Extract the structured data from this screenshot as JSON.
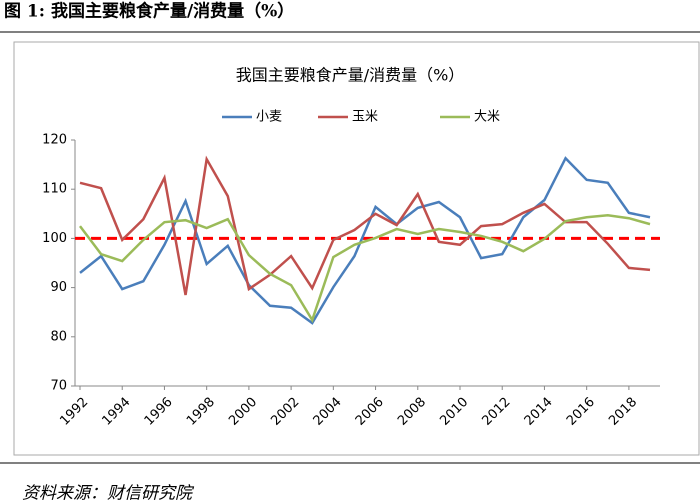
{
  "header": {
    "title": "图 1:  我国主要粮食产量/消费量（%）"
  },
  "footer": {
    "source": "资料来源：财信研究院"
  },
  "chart_data": {
    "type": "line",
    "title": "我国主要粮食产量/消费量（%）",
    "x": [
      1992,
      1993,
      1994,
      1995,
      1996,
      1997,
      1998,
      1999,
      2000,
      2001,
      2002,
      2003,
      2004,
      2005,
      2006,
      2007,
      2008,
      2009,
      2010,
      2011,
      2012,
      2013,
      2014,
      2015,
      2016,
      2017,
      2018,
      2019
    ],
    "xlim": [
      1992,
      2019
    ],
    "xticks": [
      1992,
      1994,
      1996,
      1998,
      2000,
      2002,
      2004,
      2006,
      2008,
      2010,
      2012,
      2014,
      2016,
      2018
    ],
    "ylim": [
      70,
      120
    ],
    "yticks": [
      70,
      80,
      90,
      100,
      110,
      120
    ],
    "grid": false,
    "legend": "top",
    "reference_line": {
      "value": 100,
      "color": "#ff0000",
      "style": "dashed"
    },
    "series": [
      {
        "name": "小麦",
        "color": "#4a7ebb",
        "values": [
          93,
          96.4,
          89.7,
          91.3,
          98.7,
          107.6,
          94.8,
          98.5,
          90.5,
          86.3,
          85.9,
          82.8,
          90.1,
          96.4,
          106.4,
          102.9,
          106.2,
          107.4,
          104.3,
          96,
          96.8,
          104.3,
          107.8,
          116.3,
          111.9,
          111.3,
          105.2,
          104.3
        ]
      },
      {
        "name": "玉米",
        "color": "#c0504d",
        "values": [
          111.3,
          110.2,
          99.7,
          103.9,
          112.3,
          88.5,
          116.1,
          108.6,
          89.7,
          92.6,
          96.4,
          89.9,
          99.7,
          101.7,
          105,
          102.7,
          109,
          99.3,
          98.7,
          102.5,
          102.9,
          105.2,
          107,
          103.3,
          103.3,
          98.9,
          94,
          93.6
        ]
      },
      {
        "name": "大米",
        "color": "#9bbb59",
        "values": [
          102.5,
          96.8,
          95.4,
          99.7,
          103.3,
          103.7,
          102.1,
          103.9,
          96.6,
          92.8,
          90.5,
          83.4,
          96.2,
          98.7,
          100.1,
          101.9,
          100.9,
          101.9,
          101.3,
          100.5,
          99.3,
          97.4,
          99.9,
          103.5,
          104.3,
          104.7,
          104.1,
          102.9
        ]
      }
    ]
  }
}
